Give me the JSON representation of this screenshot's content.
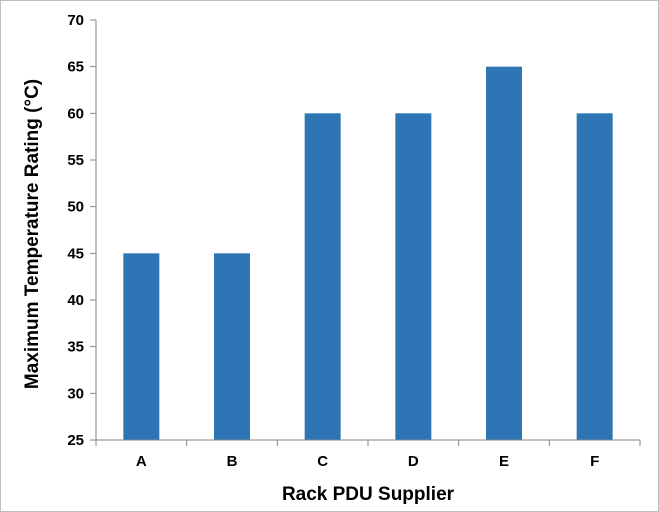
{
  "chart_data": {
    "type": "bar",
    "categories": [
      "A",
      "B",
      "C",
      "D",
      "E",
      "F"
    ],
    "values": [
      45,
      45,
      60,
      60,
      65,
      60
    ],
    "xlabel": "Rack PDU Supplier",
    "ylabel": "Maximum Temperature Rating (°C)",
    "ylim": [
      25,
      70
    ],
    "yticks": [
      25,
      30,
      35,
      40,
      45,
      50,
      55,
      60,
      65,
      70
    ],
    "grid": false,
    "legend": "none",
    "bar_color": "#2e75b6",
    "axis_color": "#868686"
  }
}
